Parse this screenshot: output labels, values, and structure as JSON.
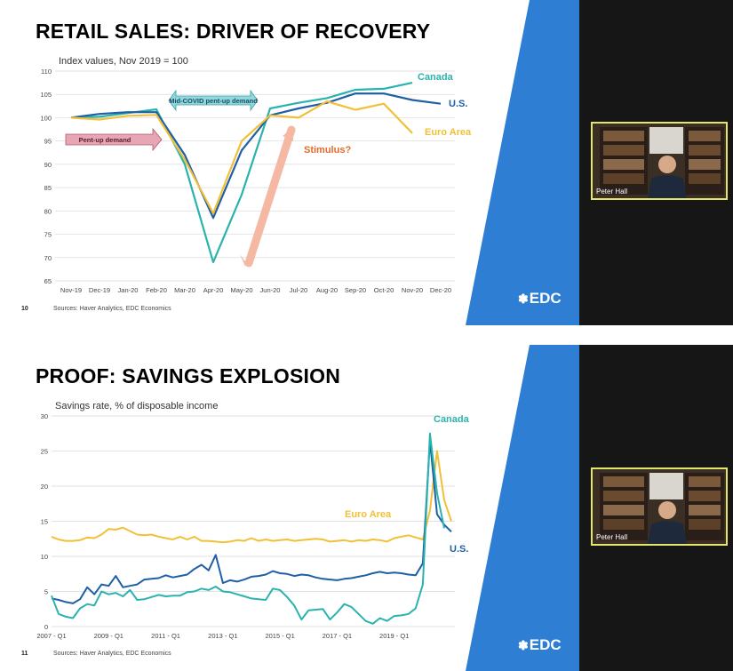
{
  "colors": {
    "canada": "#2ab3ad",
    "us": "#1f5fa6",
    "euro": "#f2c038",
    "brand_blue": "#2e7fd3",
    "dark_panel": "#161616",
    "webcam_border": "#e3e66a"
  },
  "slide1": {
    "title": "RETAIL SALES: DRIVER OF RECOVERY",
    "page_number": "10",
    "source": "Sources: Haver Analytics, EDC Economics",
    "logo": "EDC",
    "webcam_name": "Peter Hall"
  },
  "slide2": {
    "title": "PROOF: SAVINGS EXPLOSION",
    "page_number": "11",
    "source": "Sources: Haver Analytics, EDC Economics",
    "logo": "EDC",
    "webcam_name": "Peter Hall"
  },
  "chart_data": [
    {
      "type": "line",
      "subtitle": "Index values, Nov 2019 = 100",
      "ylim": [
        65,
        110
      ],
      "yticks": [
        65,
        70,
        75,
        80,
        85,
        90,
        95,
        100,
        105,
        110
      ],
      "categories": [
        "Nov-19",
        "Dec-19",
        "Jan-20",
        "Feb-20",
        "Mar-20",
        "Apr-20",
        "May-20",
        "Jun-20",
        "Jul-20",
        "Aug-20",
        "Sep-20",
        "Oct-20",
        "Nov-20",
        "Dec-20"
      ],
      "grid": true,
      "series": [
        {
          "name": "Canada",
          "color_key": "canada",
          "values": [
            100,
            100.2,
            101,
            101.8,
            90,
            69,
            83.5,
            102,
            103.2,
            104.2,
            106,
            106.2,
            107.5,
            null
          ]
        },
        {
          "name": "U.S.",
          "color_key": "us",
          "values": [
            100,
            100.8,
            101.2,
            101.2,
            92,
            78.5,
            93,
            100.5,
            102,
            103.2,
            105.2,
            105.2,
            103.8,
            103
          ]
        },
        {
          "name": "Euro Area",
          "color_key": "euro",
          "values": [
            100,
            99.6,
            100.4,
            100.6,
            91,
            79.5,
            95,
            100.5,
            100,
            103.5,
            101.7,
            103,
            96.7,
            null
          ]
        }
      ],
      "annotations": {
        "mid_covid": "Mid-COVID pent-up demand",
        "pent_up": "Pent-up demand",
        "stimulus": "Stimulus?"
      }
    },
    {
      "type": "line",
      "subtitle": "Savings rate, % of disposable income",
      "ylim": [
        0,
        30
      ],
      "yticks": [
        0,
        5,
        10,
        15,
        20,
        25,
        30
      ],
      "x_start": "2007 - Q1",
      "xtick_labels": [
        "2007 - Q1",
        "2009 - Q1",
        "2011 - Q1",
        "2013 - Q1",
        "2015 - Q1",
        "2017 - Q1",
        "2019 - Q1"
      ],
      "grid": true,
      "series": [
        {
          "name": "Euro Area",
          "color_key": "euro",
          "values": [
            12.8,
            12.4,
            12.2,
            12.2,
            12.3,
            12.7,
            12.6,
            13.1,
            13.9,
            13.8,
            14.1,
            13.6,
            13.1,
            13.0,
            13.1,
            12.8,
            12.6,
            12.4,
            12.8,
            12.4,
            12.8,
            12.2,
            12.2,
            12.1,
            12.0,
            12.1,
            12.3,
            12.2,
            12.6,
            12.2,
            12.4,
            12.2,
            12.3,
            12.4,
            12.2,
            12.3,
            12.4,
            12.5,
            12.4,
            12.1,
            12.2,
            12.3,
            12.1,
            12.3,
            12.2,
            12.4,
            12.3,
            12.1,
            12.6,
            12.8,
            13.0,
            12.7,
            12.4,
            16.5,
            25.0,
            18.0,
            15.0
          ]
        },
        {
          "name": "U.S.",
          "color_key": "us",
          "values": [
            4.0,
            3.8,
            3.5,
            3.3,
            3.9,
            5.6,
            4.6,
            6.0,
            5.8,
            7.2,
            5.6,
            5.8,
            6.0,
            6.7,
            6.8,
            6.9,
            7.3,
            7.0,
            7.2,
            7.4,
            8.2,
            8.8,
            8.0,
            10.2,
            6.2,
            6.6,
            6.4,
            6.7,
            7.1,
            7.2,
            7.4,
            7.9,
            7.6,
            7.5,
            7.2,
            7.4,
            7.3,
            7.0,
            6.8,
            6.7,
            6.6,
            6.8,
            6.9,
            7.1,
            7.3,
            7.6,
            7.8,
            7.6,
            7.7,
            7.6,
            7.4,
            7.3,
            9.0,
            26.5,
            16.0,
            14.5,
            13.5
          ]
        },
        {
          "name": "Canada",
          "color_key": "canada",
          "values": [
            4.4,
            1.8,
            1.4,
            1.2,
            2.6,
            3.2,
            3.0,
            5.0,
            4.6,
            4.8,
            4.3,
            5.2,
            3.8,
            3.9,
            4.2,
            4.5,
            4.3,
            4.4,
            4.4,
            4.9,
            5.0,
            5.4,
            5.2,
            5.7,
            5.0,
            4.9,
            4.6,
            4.3,
            4.0,
            3.9,
            3.8,
            5.4,
            5.2,
            4.2,
            3.0,
            1.0,
            2.3,
            2.4,
            2.5,
            1.0,
            2.0,
            3.2,
            2.8,
            1.8,
            0.8,
            0.4,
            1.2,
            0.8,
            1.5,
            1.6,
            1.8,
            2.6,
            6.0,
            27.5,
            19.0,
            14.0,
            null
          ]
        }
      ]
    }
  ]
}
